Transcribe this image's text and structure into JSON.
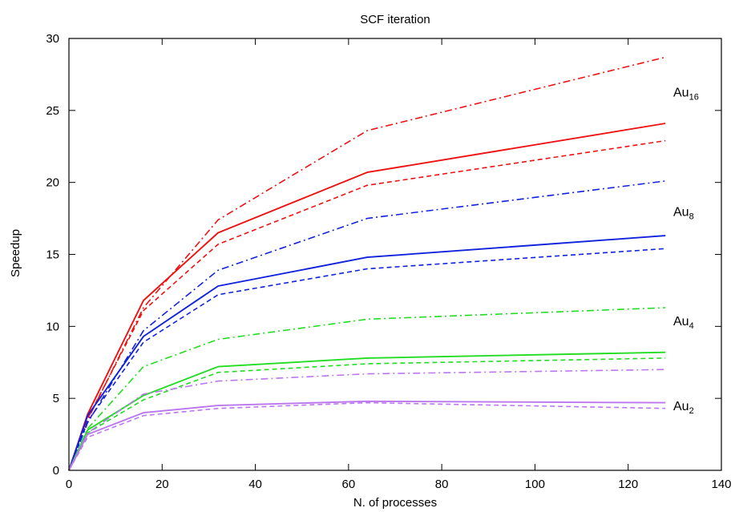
{
  "chart_data": {
    "type": "line",
    "title": "SCF iteration",
    "xlabel": "N. of processes",
    "ylabel": "Speedup",
    "xlim": [
      0,
      140
    ],
    "ylim": [
      0,
      30
    ],
    "xticks": [
      "0",
      "20",
      "40",
      "60",
      "80",
      "100",
      "120",
      "140"
    ],
    "yticks": [
      "0",
      "5",
      "10",
      "15",
      "20",
      "25",
      "30"
    ],
    "grid": false,
    "x": [
      0,
      4,
      16,
      32,
      64,
      128
    ],
    "series": [
      {
        "group": "Au16",
        "style": "solid",
        "color": "#ee1111",
        "values": [
          0,
          3.9,
          11.8,
          16.5,
          20.7,
          24.1
        ]
      },
      {
        "group": "Au16",
        "style": "dashed",
        "color": "#ee1111",
        "values": [
          0,
          3.6,
          11.1,
          15.7,
          19.8,
          22.9
        ]
      },
      {
        "group": "Au16",
        "style": "dashdot",
        "color": "#ee1111",
        "values": [
          0,
          3.5,
          11.3,
          17.4,
          23.6,
          28.7
        ]
      },
      {
        "group": "Au8",
        "style": "solid",
        "color": "#1122dd",
        "values": [
          0,
          3.8,
          9.3,
          12.8,
          14.8,
          16.3
        ]
      },
      {
        "group": "Au8",
        "style": "dashed",
        "color": "#1122dd",
        "values": [
          0,
          3.4,
          8.9,
          12.2,
          14.0,
          15.4
        ]
      },
      {
        "group": "Au8",
        "style": "dashdot",
        "color": "#1122dd",
        "values": [
          0,
          3.3,
          9.7,
          13.9,
          17.5,
          20.1
        ]
      },
      {
        "group": "Au4",
        "style": "solid",
        "color": "#22dd22",
        "values": [
          0,
          2.8,
          5.2,
          7.2,
          7.8,
          8.2
        ]
      },
      {
        "group": "Au4",
        "style": "dashed",
        "color": "#22dd22",
        "values": [
          0,
          2.6,
          4.9,
          6.8,
          7.4,
          7.8
        ]
      },
      {
        "group": "Au4",
        "style": "dashdot",
        "color": "#22dd22",
        "values": [
          0,
          2.9,
          7.2,
          9.1,
          10.5,
          11.3
        ]
      },
      {
        "group": "Au2",
        "style": "solid",
        "color": "#bb77ee",
        "values": [
          0,
          2.5,
          4.0,
          4.5,
          4.8,
          4.7
        ]
      },
      {
        "group": "Au2",
        "style": "dashed",
        "color": "#bb77ee",
        "values": [
          0,
          2.3,
          3.8,
          4.3,
          4.7,
          4.3
        ]
      },
      {
        "group": "Au2",
        "style": "dashdot",
        "color": "#bb77ee",
        "values": [
          0,
          2.6,
          5.3,
          6.2,
          6.7,
          7.0
        ]
      }
    ],
    "annotations": [
      {
        "base": "Au",
        "sub": "16",
        "y": 26.2
      },
      {
        "base": "Au",
        "sub": "8",
        "y": 17.9
      },
      {
        "base": "Au",
        "sub": "4",
        "y": 10.3
      },
      {
        "base": "Au",
        "sub": "2",
        "y": 4.4
      }
    ]
  }
}
